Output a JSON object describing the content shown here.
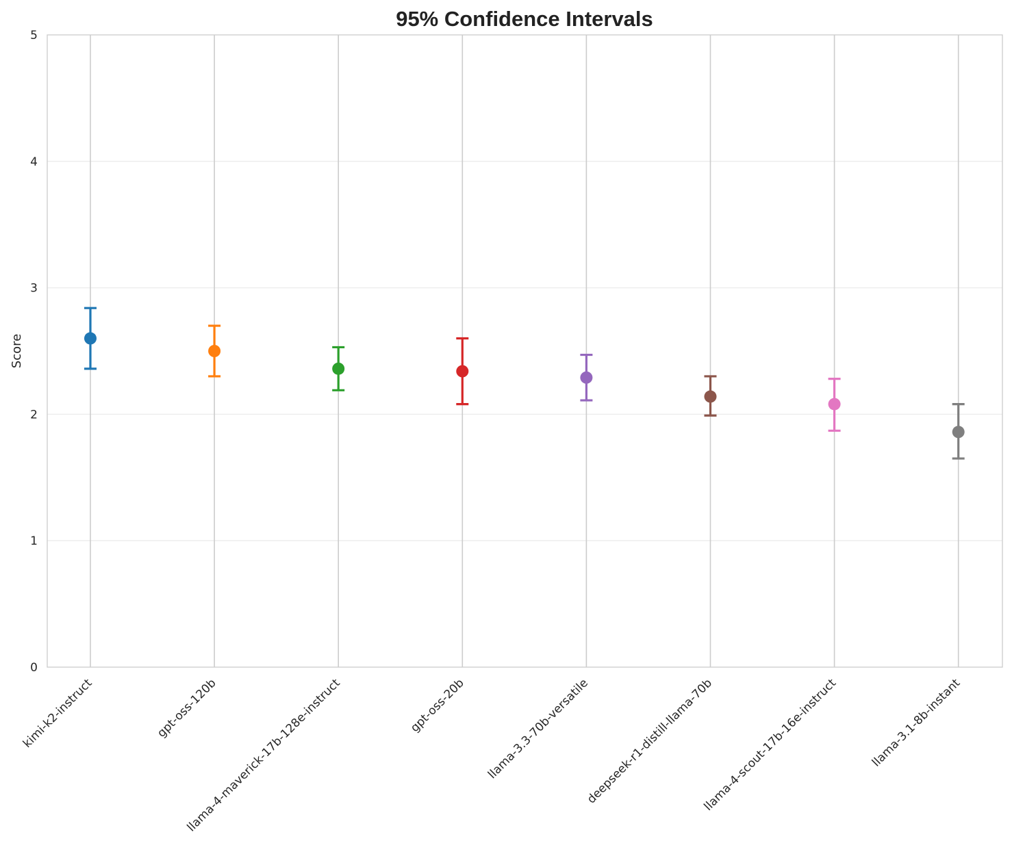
{
  "chart_data": {
    "type": "scatter",
    "title": "95% Confidence Intervals",
    "xlabel": "",
    "ylabel": "Score",
    "ylim": [
      0,
      5
    ],
    "yticks": [
      0,
      1,
      2,
      3,
      4,
      5
    ],
    "grid": true,
    "legend": "none",
    "categories": [
      "kimi-k2-instruct",
      "gpt-oss-120b",
      "llama-4-maverick-17b-128e-instruct",
      "gpt-oss-20b",
      "llama-3.3-70b-versatile",
      "deepseek-r1-distill-llama-70b",
      "llama-4-scout-17b-16e-instruct",
      "llama-3.1-8b-instant"
    ],
    "values": [
      2.6,
      2.5,
      2.36,
      2.34,
      2.29,
      2.14,
      2.08,
      1.86
    ],
    "ci_lower": [
      2.36,
      2.3,
      2.19,
      2.08,
      2.11,
      1.99,
      1.87,
      1.65
    ],
    "ci_upper": [
      2.84,
      2.7,
      2.53,
      2.6,
      2.47,
      2.3,
      2.28,
      2.08
    ],
    "colors": [
      "#1f77b4",
      "#ff7f0e",
      "#2ca02c",
      "#d62728",
      "#9467bd",
      "#8c564b",
      "#e377c2",
      "#7f7f7f"
    ]
  }
}
